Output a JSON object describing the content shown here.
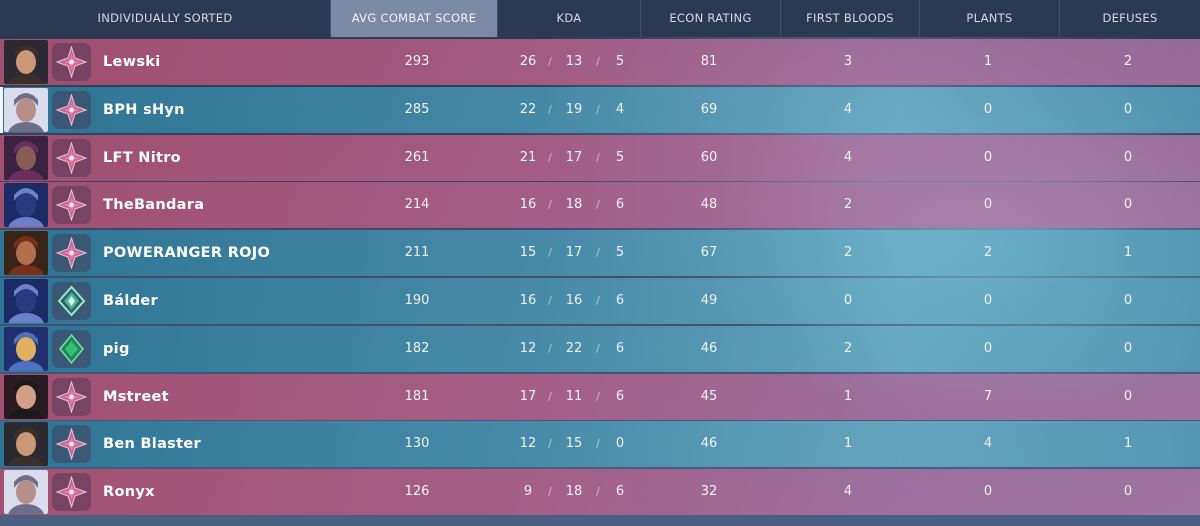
{
  "header": {
    "sort_label": "INDIVIDUALLY SORTED",
    "columns": [
      "AVG COMBAT SCORE",
      "KDA",
      "ECON RATING",
      "FIRST BLOODS",
      "PLANTS",
      "DEFUSES"
    ]
  },
  "kda_separator": "/",
  "colors": {
    "red_row": "#a85070",
    "teal_row": "#2d7696",
    "header_bg": "#2b3953",
    "active_header": "#7d8aa5"
  },
  "players": [
    {
      "name": "Lewski",
      "team": "red",
      "rank": "ascendant-icon",
      "acs": "293",
      "k": "26",
      "d": "13",
      "a": "5",
      "econ": "81",
      "fb": "3",
      "plants": "1",
      "defuses": "2"
    },
    {
      "name": "BPH sHyn",
      "team": "teal",
      "rank": "ascendant-icon",
      "acs": "285",
      "k": "22",
      "d": "19",
      "a": "4",
      "econ": "69",
      "fb": "4",
      "plants": "0",
      "defuses": "0"
    },
    {
      "name": "LFT Nitro",
      "team": "red",
      "rank": "ascendant-icon",
      "acs": "261",
      "k": "21",
      "d": "17",
      "a": "5",
      "econ": "60",
      "fb": "4",
      "plants": "0",
      "defuses": "0"
    },
    {
      "name": "TheBandara",
      "team": "red",
      "rank": "ascendant-icon",
      "acs": "214",
      "k": "16",
      "d": "18",
      "a": "6",
      "econ": "48",
      "fb": "2",
      "plants": "0",
      "defuses": "0"
    },
    {
      "name": "POWERANGER ROJO",
      "team": "teal",
      "rank": "ascendant-icon",
      "acs": "211",
      "k": "15",
      "d": "17",
      "a": "5",
      "econ": "67",
      "fb": "2",
      "plants": "2",
      "defuses": "1"
    },
    {
      "name": "Bálder",
      "team": "teal",
      "rank": "diamond-icon",
      "acs": "190",
      "k": "16",
      "d": "16",
      "a": "6",
      "econ": "49",
      "fb": "0",
      "plants": "0",
      "defuses": "0"
    },
    {
      "name": "pig",
      "team": "teal",
      "rank": "emerald-icon",
      "acs": "182",
      "k": "12",
      "d": "22",
      "a": "6",
      "econ": "46",
      "fb": "2",
      "plants": "0",
      "defuses": "0"
    },
    {
      "name": "Mstreet",
      "team": "red",
      "rank": "ascendant-icon",
      "acs": "181",
      "k": "17",
      "d": "11",
      "a": "6",
      "econ": "45",
      "fb": "1",
      "plants": "7",
      "defuses": "0"
    },
    {
      "name": "Ben Blaster",
      "team": "teal",
      "rank": "ascendant-icon",
      "acs": "130",
      "k": "12",
      "d": "15",
      "a": "0",
      "econ": "46",
      "fb": "1",
      "plants": "4",
      "defuses": "1"
    },
    {
      "name": "Ronyx",
      "team": "red",
      "rank": "ascendant-icon",
      "acs": "126",
      "k": "9",
      "d": "18",
      "a": "6",
      "econ": "32",
      "fb": "4",
      "plants": "0",
      "defuses": "0"
    }
  ]
}
